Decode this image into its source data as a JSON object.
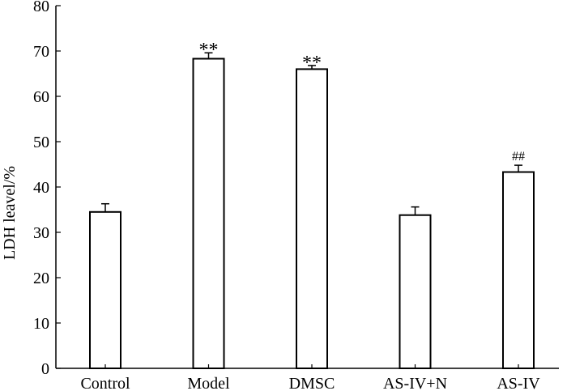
{
  "chart_data": {
    "type": "bar",
    "title": "",
    "xlabel": "",
    "ylabel": "LDH leavel/%",
    "ylim": [
      0,
      80
    ],
    "yticks": [
      0,
      10,
      20,
      30,
      40,
      50,
      60,
      70,
      80
    ],
    "grid": false,
    "legend": "none",
    "categories": [
      "Control",
      "Model",
      "DMSC",
      "AS-IV+N",
      "AS-IV"
    ],
    "values": [
      34.5,
      68.3,
      66.0,
      33.8,
      43.3
    ],
    "errors": [
      1.8,
      1.3,
      0.8,
      1.8,
      1.5
    ],
    "annotations": [
      "",
      "**",
      "**",
      "",
      "##"
    ],
    "bar_fill": "#ffffff",
    "bar_stroke": "#000000"
  }
}
